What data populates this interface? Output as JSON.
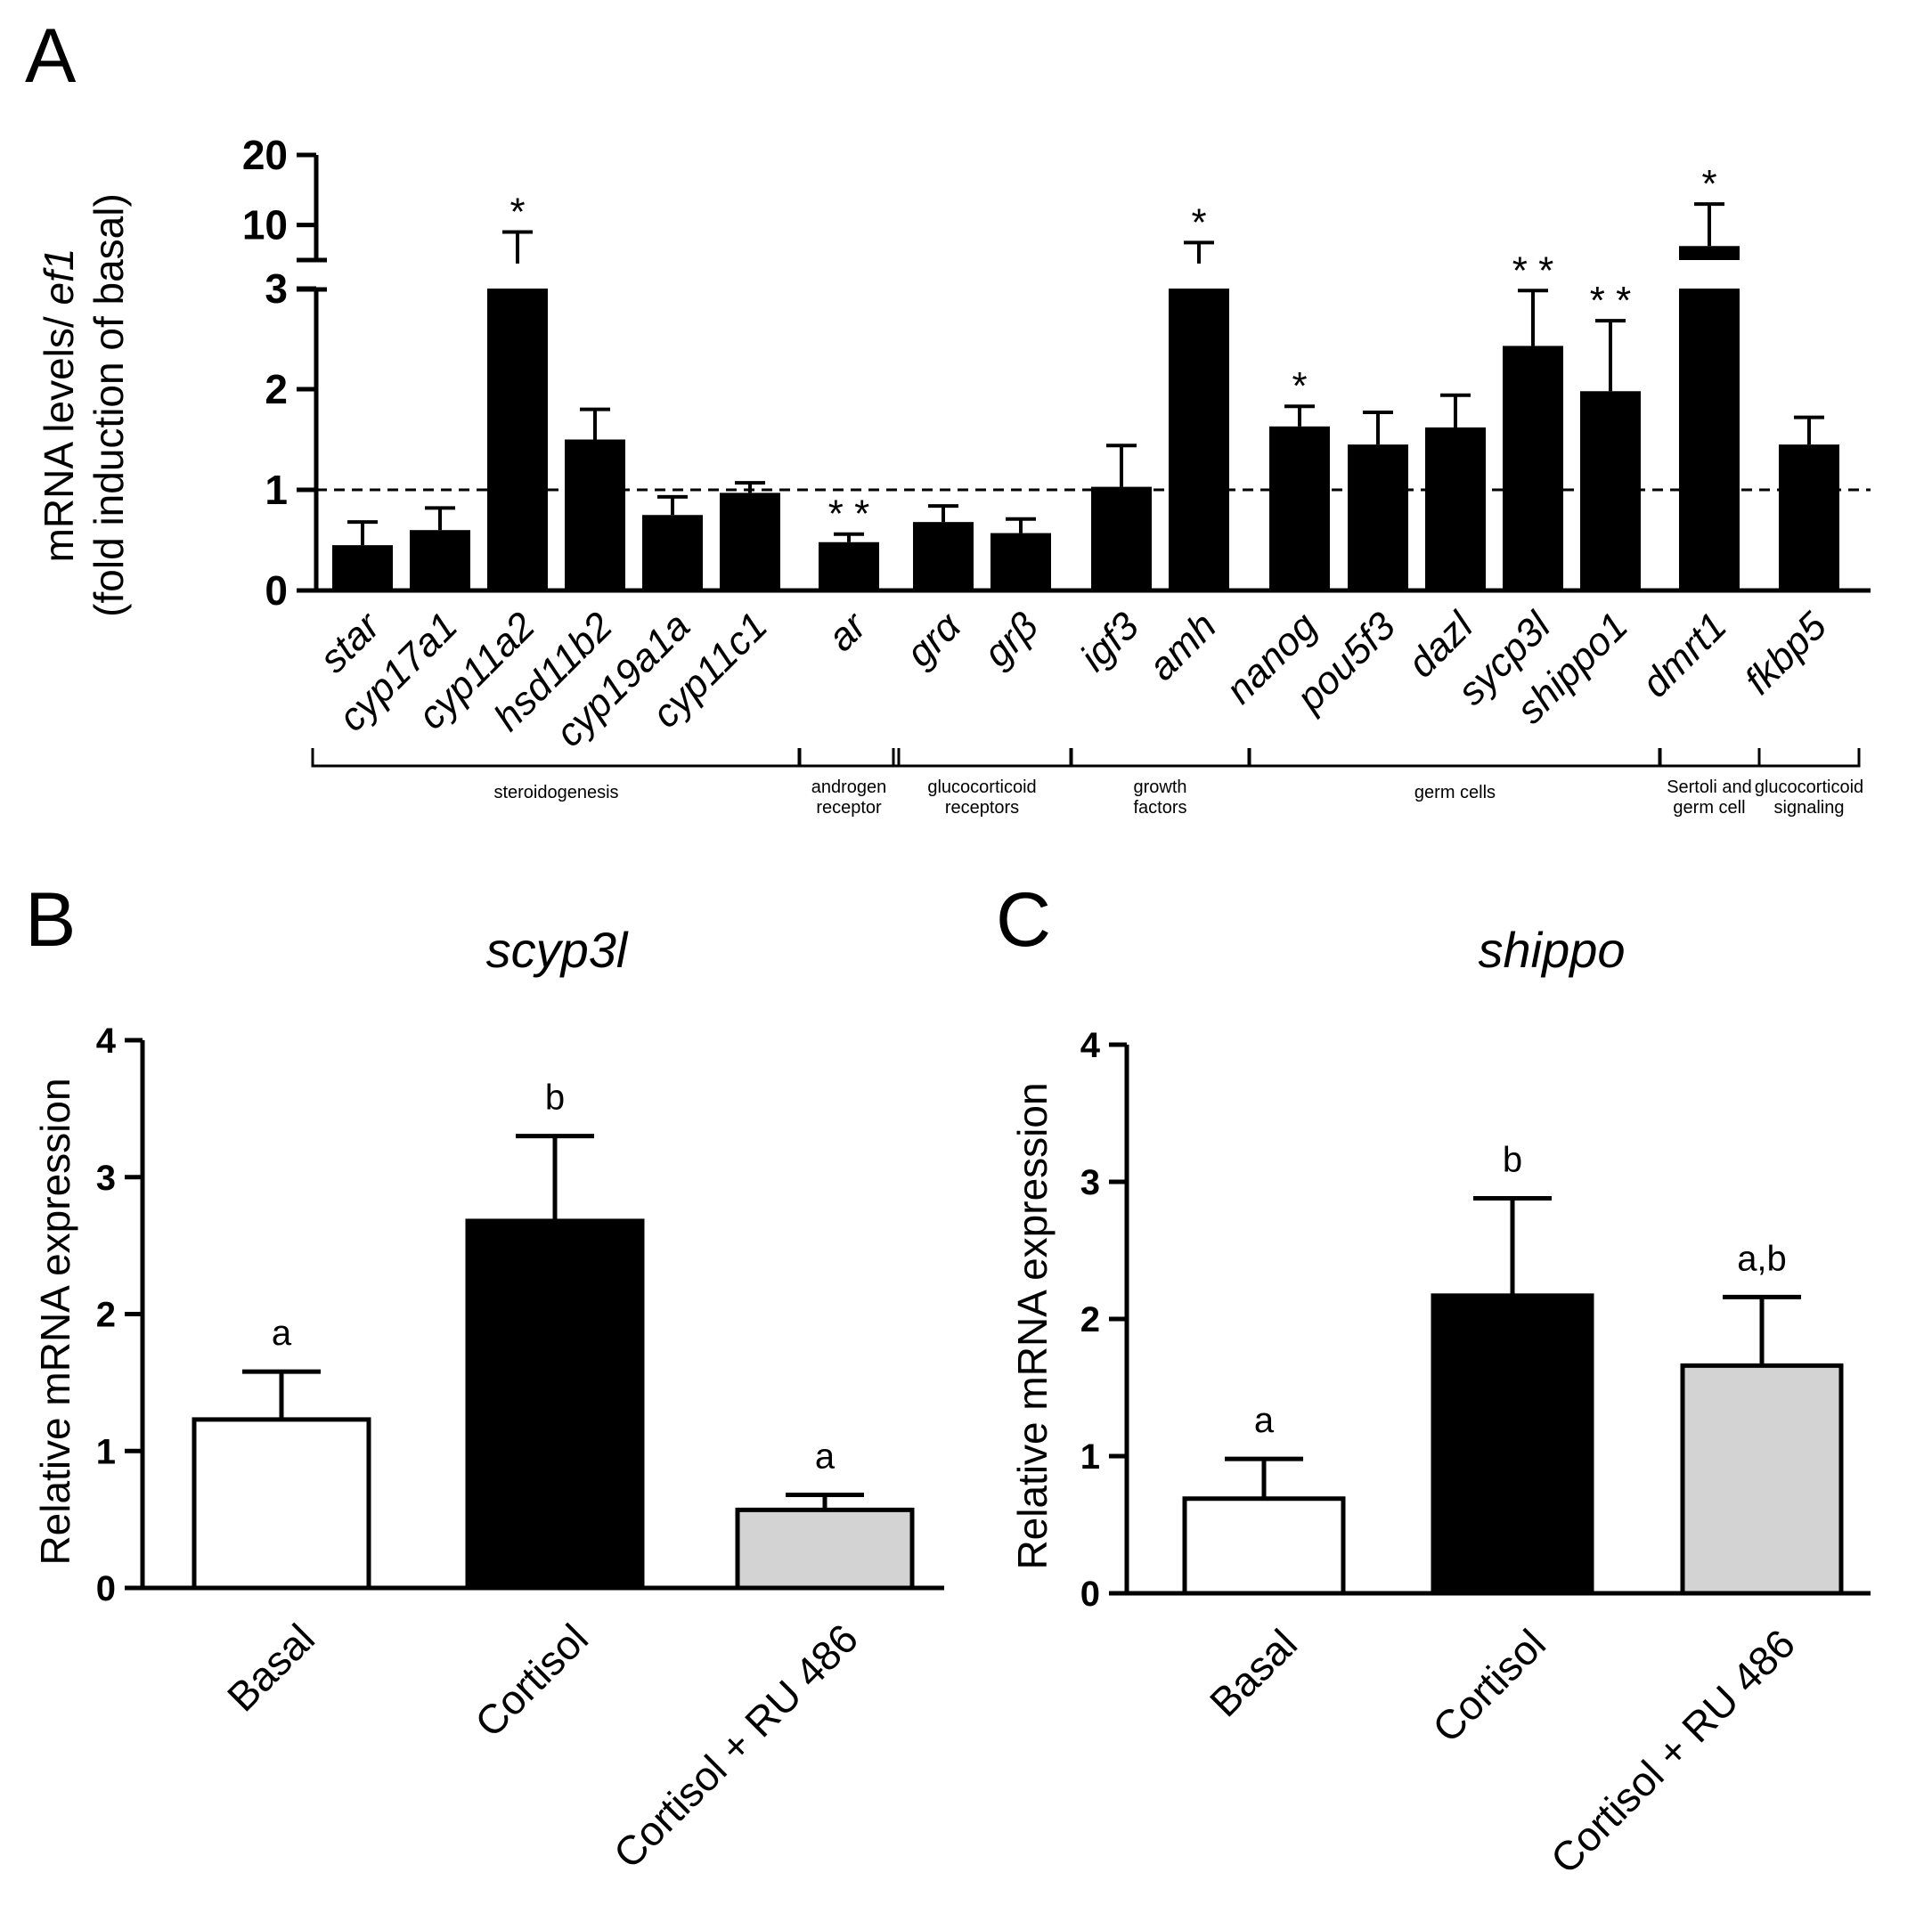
{
  "chart_data": [
    {
      "panel": "A",
      "type": "bar",
      "ylabel_line1": "mRNA levels/ ",
      "ylabel_line1_italic": "ef1",
      "ylabel_line2": "(fold induction of basal)",
      "y_axis_break": true,
      "lower_yticks": [
        "0",
        "1",
        "2",
        "3"
      ],
      "upper_yticks": [
        "10",
        "20"
      ],
      "reference_line": 1,
      "categories": [
        "star",
        "cyp17a1",
        "cyp11a2",
        "hsd11b2",
        "cyp19a1a",
        "cyp11c1",
        "ar",
        "grα",
        "grβ",
        "igf3",
        "amh",
        "nanog",
        "pou5f3",
        "dazl",
        "sycp3l",
        "shippo1",
        "dmrt1",
        "fkbp5"
      ],
      "values": [
        0.45,
        0.6,
        4.5,
        1.5,
        0.75,
        0.97,
        0.48,
        0.68,
        0.57,
        1.03,
        4.5,
        1.63,
        1.45,
        1.62,
        2.43,
        1.98,
        7,
        1.45
      ],
      "errors": [
        0.23,
        0.22,
        4.5,
        0.3,
        0.18,
        0.1,
        0.08,
        0.16,
        0.14,
        0.41,
        3,
        0.2,
        0.32,
        0.32,
        0.55,
        0.7,
        6,
        0.27
      ],
      "significance": [
        "",
        "",
        "*",
        "",
        "",
        "",
        "**",
        "",
        "",
        "",
        "*",
        "*",
        "",
        "",
        "**",
        "**",
        "*",
        ""
      ],
      "groups": [
        {
          "label": [
            "steroidogenesis"
          ]
        },
        {
          "label": [
            "androgen",
            "receptor"
          ]
        },
        {
          "label": [
            "glucocorticoid",
            "receptors"
          ]
        },
        {
          "label": [
            "growth",
            "factors"
          ]
        },
        {
          "label": [
            "germ cells"
          ]
        },
        {
          "label": [
            "Sertoli and",
            "germ cell"
          ]
        },
        {
          "label": [
            "glucocorticoid",
            "signaling"
          ]
        }
      ],
      "group_spans": [
        [
          0,
          5
        ],
        [
          6,
          6
        ],
        [
          7,
          8
        ],
        [
          9,
          10
        ],
        [
          11,
          15
        ],
        [
          16,
          16
        ],
        [
          17,
          17
        ]
      ]
    },
    {
      "panel": "B",
      "type": "bar",
      "title": "scyp3l",
      "ylabel": "Relative mRNA expression",
      "ylim": [
        0,
        4
      ],
      "yticks": [
        "0",
        "1",
        "2",
        "3",
        "4"
      ],
      "categories": [
        "Basal",
        "Cortisol",
        "Cortisol + RU 486"
      ],
      "values": [
        1.23,
        2.68,
        0.57
      ],
      "errors": [
        0.35,
        0.62,
        0.11
      ],
      "letters": [
        "a",
        "b",
        "a"
      ],
      "colors": [
        "#ffffff",
        "#000000",
        "#d3d3d3"
      ]
    },
    {
      "panel": "C",
      "type": "bar",
      "title": "shippo",
      "ylabel": "Relative mRNA expression",
      "ylim": [
        0,
        4
      ],
      "yticks": [
        "0",
        "1",
        "2",
        "3",
        "4"
      ],
      "categories": [
        "Basal",
        "Cortisol",
        "Cortisol + RU 486"
      ],
      "values": [
        0.69,
        2.17,
        1.66
      ],
      "errors": [
        0.29,
        0.71,
        0.5
      ],
      "letters": [
        "a",
        "b",
        "a,b"
      ],
      "colors": [
        "#ffffff",
        "#000000",
        "#d3d3d3"
      ]
    }
  ]
}
